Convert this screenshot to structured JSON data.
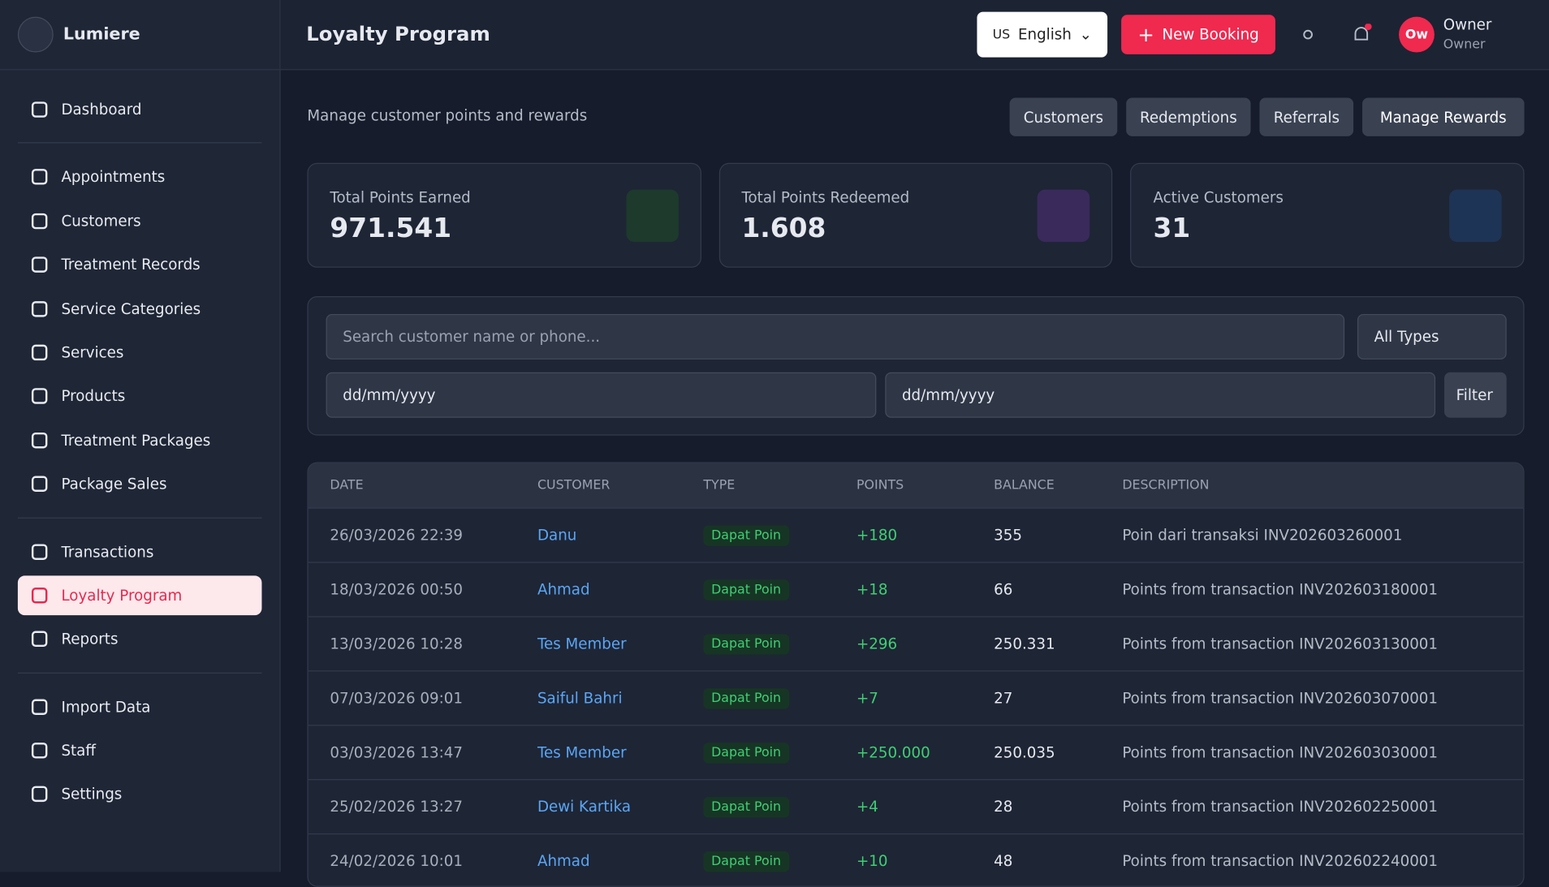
{
  "sidebar": {
    "brand": "Lumiere",
    "nav_groups": [
      [
        {
          "label": "Dashboard"
        }
      ],
      [
        {
          "label": "Appointments"
        },
        {
          "label": "Customers"
        },
        {
          "label": "Treatment Records"
        },
        {
          "label": "Service Categories"
        },
        {
          "label": "Services"
        },
        {
          "label": "Products"
        },
        {
          "label": "Treatment Packages"
        },
        {
          "label": "Package Sales"
        }
      ],
      [
        {
          "label": "Transactions"
        },
        {
          "label": "Loyalty Program",
          "active": true
        },
        {
          "label": "Reports"
        }
      ],
      [
        {
          "label": "Import Data"
        },
        {
          "label": "Staff"
        },
        {
          "label": "Settings"
        }
      ]
    ]
  },
  "header": {
    "title": "Loyalty Program",
    "language_code": "US",
    "language": "English",
    "new_booking": "New Booking",
    "avatar": "Ow",
    "user_name": "Owner",
    "user_role": "Owner"
  },
  "page": {
    "subtitle": "Manage customer points and rewards",
    "tabs": [
      "Customers",
      "Redemptions",
      "Referrals"
    ],
    "primary_action": "Manage Rewards"
  },
  "stats": [
    {
      "label": "Total Points Earned",
      "value": "971.541"
    },
    {
      "label": "Total Points Redeemed",
      "value": "1.608"
    },
    {
      "label": "Active Customers",
      "value": "31"
    }
  ],
  "filters": {
    "search_placeholder": "Search customer name or phone...",
    "type": "All Types",
    "date_from": "dd/mm/yyyy",
    "date_to": "dd/mm/yyyy",
    "button": "Filter"
  },
  "table": {
    "columns": [
      "DATE",
      "CUSTOMER",
      "TYPE",
      "POINTS",
      "BALANCE",
      "DESCRIPTION"
    ],
    "rows": [
      [
        "26/03/2026 22:39",
        "Danu",
        "Dapat Poin",
        "+180",
        "355",
        "Poin dari transaksi INV202603260001"
      ],
      [
        "18/03/2026 00:50",
        "Ahmad",
        "Dapat Poin",
        "+18",
        "66",
        "Points from transaction INV202603180001"
      ],
      [
        "13/03/2026 10:28",
        "Tes Member",
        "Dapat Poin",
        "+296",
        "250.331",
        "Points from transaction INV202603130001"
      ],
      [
        "07/03/2026 09:01",
        "Saiful Bahri",
        "Dapat Poin",
        "+7",
        "27",
        "Points from transaction INV202603070001"
      ],
      [
        "03/03/2026 13:47",
        "Tes Member",
        "Dapat Poin",
        "+250.000",
        "250.035",
        "Points from transaction INV202603030001"
      ],
      [
        "25/02/2026 13:27",
        "Dewi Kartika",
        "Dapat Poin",
        "+4",
        "28",
        "Points from transaction INV202602250001"
      ],
      [
        "24/02/2026 10:01",
        "Ahmad",
        "Dapat Poin",
        "+10",
        "48",
        "Points from transaction INV202602240001"
      ]
    ]
  }
}
